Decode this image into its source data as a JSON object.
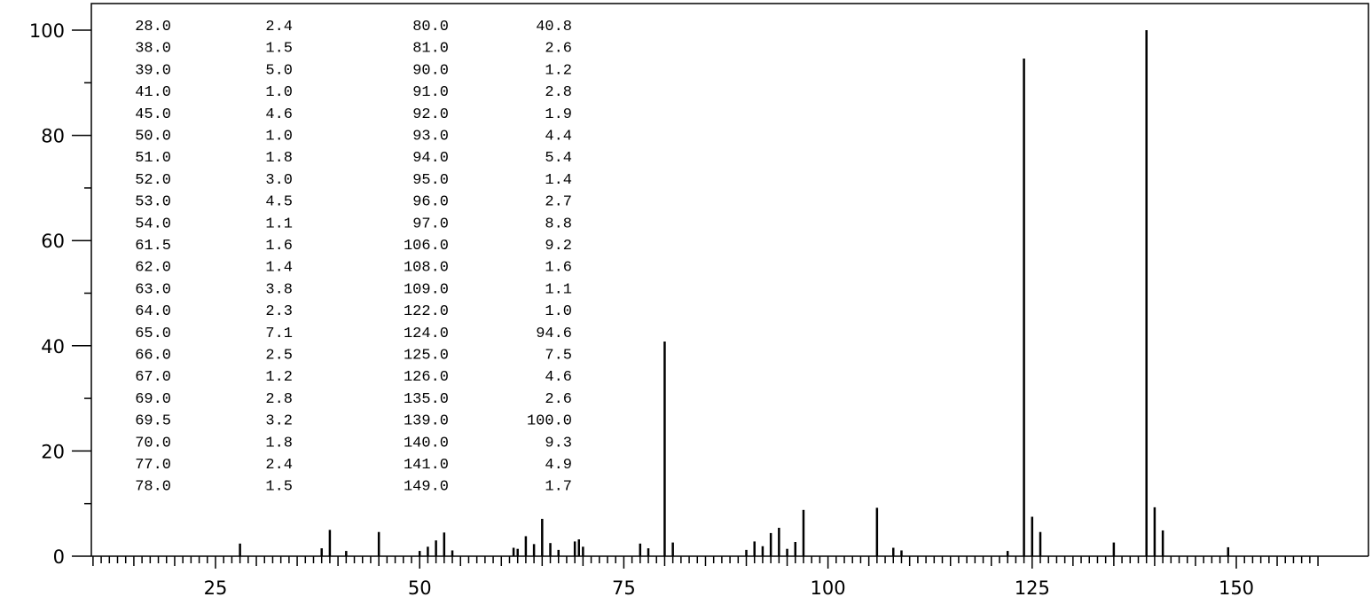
{
  "chart_data": {
    "type": "bar",
    "title": "",
    "xlabel": "",
    "ylabel": "",
    "xlim": [
      10,
      162
    ],
    "ylim": [
      0,
      105
    ],
    "x_ticks": [
      25,
      50,
      75,
      100,
      125,
      150
    ],
    "y_ticks": [
      0,
      20,
      40,
      60,
      80,
      100
    ],
    "grid": false,
    "peaks": [
      {
        "x": 28.0,
        "y": 2.4
      },
      {
        "x": 38.0,
        "y": 1.5
      },
      {
        "x": 39.0,
        "y": 5.0
      },
      {
        "x": 41.0,
        "y": 1.0
      },
      {
        "x": 45.0,
        "y": 4.6
      },
      {
        "x": 50.0,
        "y": 1.0
      },
      {
        "x": 51.0,
        "y": 1.8
      },
      {
        "x": 52.0,
        "y": 3.0
      },
      {
        "x": 53.0,
        "y": 4.5
      },
      {
        "x": 54.0,
        "y": 1.1
      },
      {
        "x": 61.5,
        "y": 1.6
      },
      {
        "x": 62.0,
        "y": 1.4
      },
      {
        "x": 63.0,
        "y": 3.8
      },
      {
        "x": 64.0,
        "y": 2.3
      },
      {
        "x": 65.0,
        "y": 7.1
      },
      {
        "x": 66.0,
        "y": 2.5
      },
      {
        "x": 67.0,
        "y": 1.2
      },
      {
        "x": 69.0,
        "y": 2.8
      },
      {
        "x": 69.5,
        "y": 3.2
      },
      {
        "x": 70.0,
        "y": 1.8
      },
      {
        "x": 77.0,
        "y": 2.4
      },
      {
        "x": 78.0,
        "y": 1.5
      },
      {
        "x": 80.0,
        "y": 40.8
      },
      {
        "x": 81.0,
        "y": 2.6
      },
      {
        "x": 90.0,
        "y": 1.2
      },
      {
        "x": 91.0,
        "y": 2.8
      },
      {
        "x": 92.0,
        "y": 1.9
      },
      {
        "x": 93.0,
        "y": 4.4
      },
      {
        "x": 94.0,
        "y": 5.4
      },
      {
        "x": 95.0,
        "y": 1.4
      },
      {
        "x": 96.0,
        "y": 2.7
      },
      {
        "x": 97.0,
        "y": 8.8
      },
      {
        "x": 106.0,
        "y": 9.2
      },
      {
        "x": 108.0,
        "y": 1.6
      },
      {
        "x": 109.0,
        "y": 1.1
      },
      {
        "x": 122.0,
        "y": 1.0
      },
      {
        "x": 124.0,
        "y": 94.6
      },
      {
        "x": 125.0,
        "y": 7.5
      },
      {
        "x": 126.0,
        "y": 4.6
      },
      {
        "x": 135.0,
        "y": 2.6
      },
      {
        "x": 139.0,
        "y": 100.0
      },
      {
        "x": 140.0,
        "y": 9.3
      },
      {
        "x": 141.0,
        "y": 4.9
      },
      {
        "x": 149.0,
        "y": 1.7
      }
    ],
    "table": {
      "columns": [
        [
          "28.0",
          "38.0",
          "39.0",
          "41.0",
          "45.0",
          "50.0",
          "51.0",
          "52.0",
          "53.0",
          "54.0",
          "61.5",
          "62.0",
          "63.0",
          "64.0",
          "65.0",
          "66.0",
          "67.0",
          "69.0",
          "69.5",
          "70.0",
          "77.0",
          "78.0"
        ],
        [
          "2.4",
          "1.5",
          "5.0",
          "1.0",
          "4.6",
          "1.0",
          "1.8",
          "3.0",
          "4.5",
          "1.1",
          "1.6",
          "1.4",
          "3.8",
          "2.3",
          "7.1",
          "2.5",
          "1.2",
          "2.8",
          "3.2",
          "1.8",
          "2.4",
          "1.5"
        ],
        [
          "80.0",
          "81.0",
          "90.0",
          "91.0",
          "92.0",
          "93.0",
          "94.0",
          "95.0",
          "96.0",
          "97.0",
          "106.0",
          "108.0",
          "109.0",
          "122.0",
          "124.0",
          "125.0",
          "126.0",
          "135.0",
          "139.0",
          "140.0",
          "141.0",
          "149.0"
        ],
        [
          "40.8",
          "2.6",
          "1.2",
          "2.8",
          "1.9",
          "4.4",
          "5.4",
          "1.4",
          "2.7",
          "8.8",
          "9.2",
          "1.6",
          "1.1",
          "1.0",
          "94.6",
          "7.5",
          "4.6",
          "2.6",
          "100.0",
          "9.3",
          "4.9",
          "1.7"
        ]
      ]
    }
  }
}
